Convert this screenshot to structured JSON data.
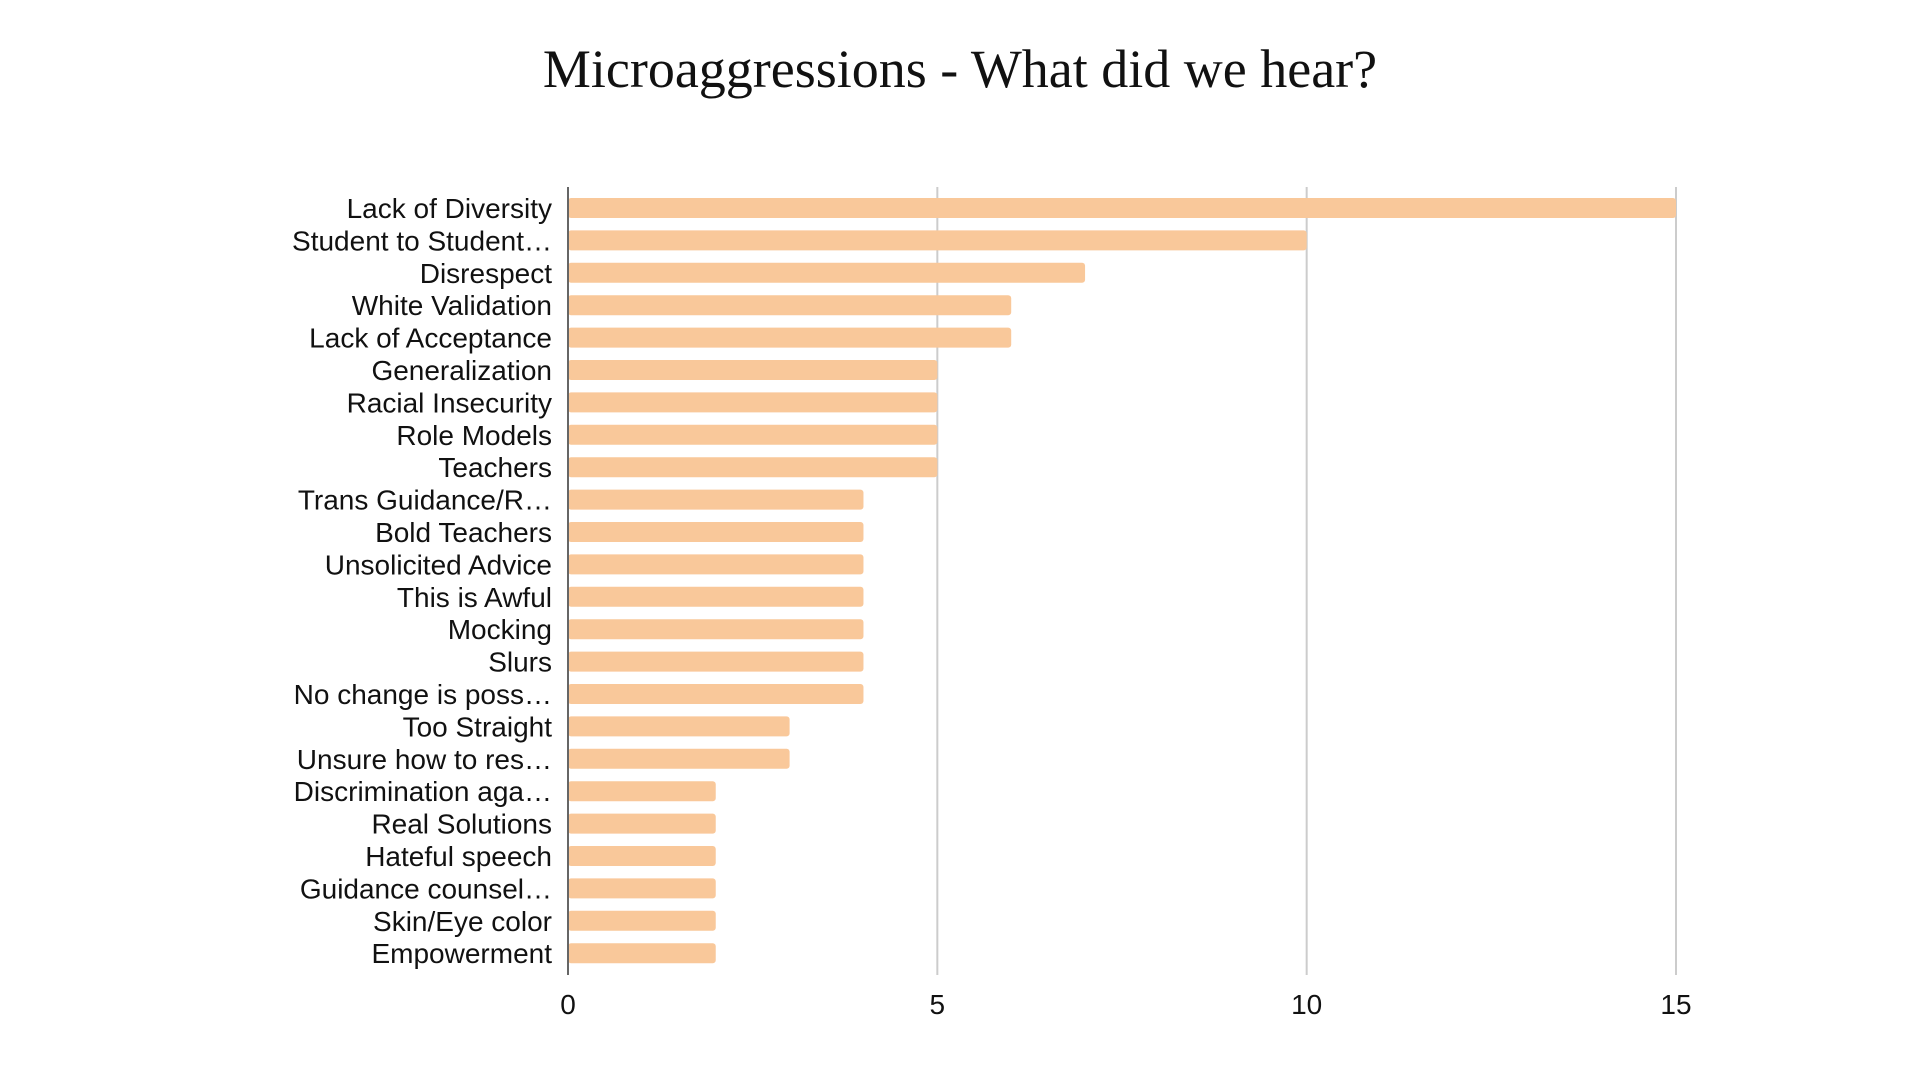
{
  "chart_data": {
    "type": "bar",
    "orientation": "horizontal",
    "title": "Microaggressions - What did we hear?",
    "categories": [
      "Lack of Diversity",
      "Student to Student…",
      "Disrespect",
      "White Validation",
      "Lack of Acceptance",
      "Generalization",
      "Racial Insecurity",
      "Role Models",
      "Teachers",
      "Trans Guidance/R…",
      "Bold Teachers",
      "Unsolicited Advice",
      "This is Awful",
      "Mocking",
      "Slurs",
      "No change is poss…",
      "Too Straight",
      "Unsure how to res…",
      "Discrimination aga…",
      "Real Solutions",
      "Hateful speech",
      "Guidance counsel…",
      "Skin/Eye color",
      "Empowerment"
    ],
    "values": [
      15,
      10,
      7,
      6,
      6,
      5,
      5,
      5,
      5,
      4,
      4,
      4,
      4,
      4,
      4,
      4,
      3,
      3,
      2,
      2,
      2,
      2,
      2,
      2
    ],
    "xlim": [
      0,
      15
    ],
    "xticks": [
      "0",
      "5",
      "10",
      "15"
    ],
    "grid": true,
    "bar_color": "#f9c89a",
    "grid_color": "#cccccc",
    "axis_color": "#666666"
  }
}
